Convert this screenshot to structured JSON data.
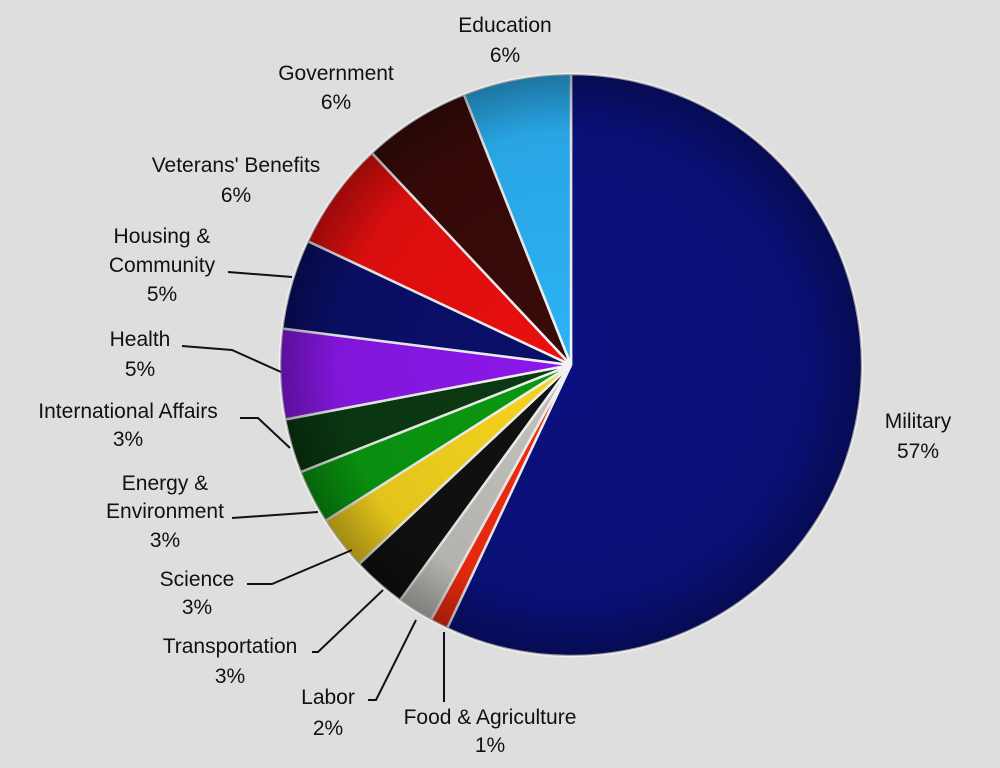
{
  "chart_data": {
    "type": "pie",
    "title": "",
    "start": "top",
    "direction": "clockwise",
    "slices": [
      {
        "name": "Military",
        "value": 57,
        "label": "57%",
        "color": "#0a117f"
      },
      {
        "name": "Food & Agriculture",
        "value": 1,
        "label": "1%",
        "color": "#f52c10"
      },
      {
        "name": "Labor",
        "value": 2,
        "label": "2%",
        "color": "#c4c2bc"
      },
      {
        "name": "Transportation",
        "value": 3,
        "label": "3%",
        "color": "#111111"
      },
      {
        "name": "Science",
        "value": 3,
        "label": "3%",
        "color": "#f7d51e"
      },
      {
        "name": "Energy & Environment",
        "value": 3,
        "label": "3%",
        "color": "#0a9a10"
      },
      {
        "name": "International  Affairs",
        "value": 3,
        "label": "3%",
        "color": "#0b3a12"
      },
      {
        "name": "Health",
        "value": 5,
        "label": "5%",
        "color": "#8c18ec"
      },
      {
        "name": "Housing & Community",
        "value": 5,
        "label": "5%",
        "color": "#0a0f6a"
      },
      {
        "name": "Veterans' Benefits",
        "value": 6,
        "label": "6%",
        "color": "#ec0f0f"
      },
      {
        "name": "Government",
        "value": 6,
        "label": "6%",
        "color": "#3a0a0a"
      },
      {
        "name": "Education",
        "value": 6,
        "label": "6%",
        "color": "#2cb3f7"
      }
    ],
    "legend": "none"
  }
}
